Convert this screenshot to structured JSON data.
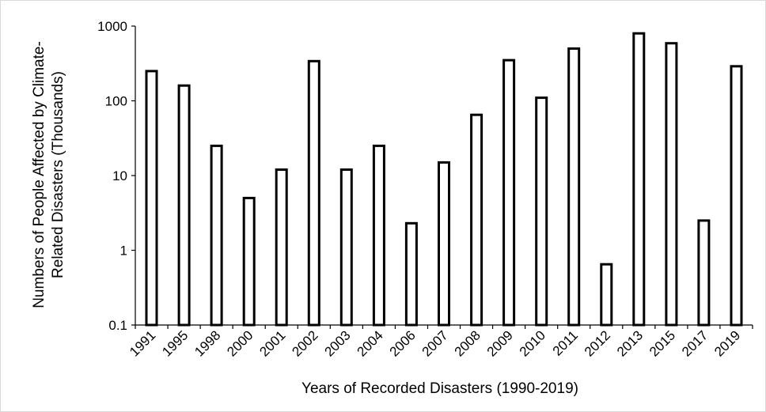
{
  "chart_data": {
    "type": "bar",
    "xlabel": "Years of Recorded Disasters (1990-2019)",
    "ylabel_lines": [
      "Numbers of People Affected by Climate-",
      "Related Disasters (Thousands)"
    ],
    "y_scale": "log",
    "ylim": [
      0.1,
      1000
    ],
    "y_ticks": [
      0.1,
      1,
      10,
      100,
      1000
    ],
    "y_tick_labels": [
      "0.1",
      "1",
      "10",
      "100",
      "1000"
    ],
    "grid": false,
    "bar_fill": "#ffffff",
    "bar_stroke": "#000000",
    "categories": [
      "1991",
      "1995",
      "1998",
      "2000",
      "2001",
      "2002",
      "2003",
      "2004",
      "2006",
      "2007",
      "2008",
      "2009",
      "2010",
      "2011",
      "2012",
      "2013",
      "2015",
      "2017",
      "2019"
    ],
    "values": [
      250,
      160,
      25,
      5,
      12,
      340,
      12,
      25,
      2.3,
      15,
      65,
      350,
      110,
      500,
      0.65,
      800,
      590,
      2.5,
      290
    ]
  }
}
